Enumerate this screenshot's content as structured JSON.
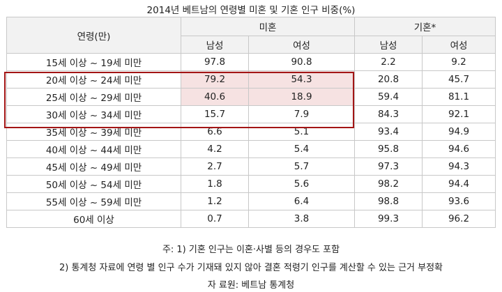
{
  "title": "2014년 베트남의 연령별 미혼 및 기혼 인구 비중(%)",
  "chart_data": {
    "type": "table",
    "header": {
      "age": "연령(만)",
      "single": "미혼",
      "married": "기혼*",
      "male": "남성",
      "female": "여성"
    },
    "rows": [
      {
        "age": "15세 이상 ~ 19세 미만",
        "single_m": "97.8",
        "single_f": "90.8",
        "married_m": "2.2",
        "married_f": "9.2"
      },
      {
        "age": "20세 이상 ~ 24세 미만",
        "single_m": "79.2",
        "single_f": "54.3",
        "married_m": "20.8",
        "married_f": "45.7"
      },
      {
        "age": "25세 이상 ~ 29세 미만",
        "single_m": "40.6",
        "single_f": "18.9",
        "married_m": "59.4",
        "married_f": "81.1"
      },
      {
        "age": "30세 이상 ~ 34세 미만",
        "single_m": "15.7",
        "single_f": "7.9",
        "married_m": "84.3",
        "married_f": "92.1"
      },
      {
        "age": "35세 이상 ~ 39세 미만",
        "single_m": "6.6",
        "single_f": "5.1",
        "married_m": "93.4",
        "married_f": "94.9"
      },
      {
        "age": "40세 이상 ~ 44세 미만",
        "single_m": "4.2",
        "single_f": "5.4",
        "married_m": "95.8",
        "married_f": "94.6"
      },
      {
        "age": "45세 이상 ~ 49세 미만",
        "single_m": "2.7",
        "single_f": "5.7",
        "married_m": "97.3",
        "married_f": "94.3"
      },
      {
        "age": "50세 이상 ~ 54세 미만",
        "single_m": "1.8",
        "single_f": "5.6",
        "married_m": "98.2",
        "married_f": "94.4"
      },
      {
        "age": "55세 이상 ~ 59세 미만",
        "single_m": "1.2",
        "single_f": "6.4",
        "married_m": "98.8",
        "married_f": "93.6"
      },
      {
        "age": "60세 이상",
        "single_m": "0.7",
        "single_f": "3.8",
        "married_m": "99.3",
        "married_f": "96.2"
      }
    ],
    "highlight_color": "#f6e2e2",
    "box_color": "#a31515"
  },
  "notes": [
    "주: 1) 기혼 인구는 이혼·사별 등의 경우도 포함",
    "2) 통계청 자료에 연령 별 인구 수가 기재돼 있지 않아 결혼 적령기 인구를 계산할 수 있는 근거 부정확",
    "자 료원: 베트남 통계청"
  ]
}
